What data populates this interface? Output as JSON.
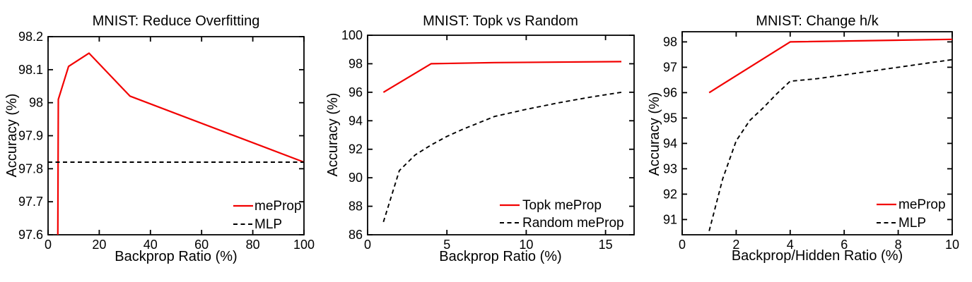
{
  "figure": {
    "background": "#ffffff",
    "axis_color": "#000000",
    "accent_red": "#f20000"
  },
  "chart_data": [
    {
      "type": "line",
      "title": "MNIST: Reduce Overfitting",
      "xlabel": "Backprop Ratio (%)",
      "ylabel": "Accuracy (%)",
      "xlim": [
        0,
        100
      ],
      "ylim": [
        97.6,
        98.2
      ],
      "xticks": [
        0,
        20,
        40,
        60,
        80,
        100
      ],
      "xtick_labels": [
        "0",
        "20",
        "40",
        "60",
        "80",
        "100"
      ],
      "yticks": [
        97.6,
        97.7,
        97.8,
        97.9,
        98,
        98.1,
        98.2
      ],
      "ytick_labels": [
        "97.6",
        "97.7",
        "97.8",
        "97.9",
        "98",
        "98.1",
        "98.2"
      ],
      "grid": false,
      "legend_position": "bottom-right",
      "series": [
        {
          "name": "meProp",
          "color": "#f20000",
          "style": "solid",
          "points": [
            [
              3.8,
              97.6
            ],
            [
              4,
              98.01
            ],
            [
              8,
              98.11
            ],
            [
              16,
              98.15
            ],
            [
              32,
              98.02
            ],
            [
              100,
              97.82
            ]
          ]
        },
        {
          "name": "MLP",
          "color": "#000000",
          "style": "dashed",
          "points": [
            [
              0,
              97.82
            ],
            [
              100,
              97.82
            ]
          ]
        }
      ]
    },
    {
      "type": "line",
      "title": "MNIST: Topk vs Random",
      "xlabel": "Backprop Ratio (%)",
      "ylabel": "Accuracy (%)",
      "xlim": [
        0,
        16.8
      ],
      "ylim": [
        86,
        100
      ],
      "xticks": [
        0,
        5,
        10,
        15
      ],
      "xtick_labels": [
        "0",
        "5",
        "10",
        "15"
      ],
      "yticks": [
        86,
        88,
        90,
        92,
        94,
        96,
        98,
        100
      ],
      "ytick_labels": [
        "86",
        "88",
        "90",
        "92",
        "94",
        "96",
        "98",
        "100"
      ],
      "grid": false,
      "legend_position": "bottom-right",
      "series": [
        {
          "name": "Topk meProp",
          "color": "#f20000",
          "style": "solid",
          "points": [
            [
              1,
              96
            ],
            [
              4,
              98
            ],
            [
              8,
              98.08
            ],
            [
              16,
              98.15
            ]
          ]
        },
        {
          "name": "Random meProp",
          "color": "#000000",
          "style": "dashed",
          "points": [
            [
              1,
              86.9
            ],
            [
              2,
              90.5
            ],
            [
              3,
              91.6
            ],
            [
              4,
              92.3
            ],
            [
              5,
              92.9
            ],
            [
              6,
              93.4
            ],
            [
              8,
              94.3
            ],
            [
              10,
              94.8
            ],
            [
              12,
              95.25
            ],
            [
              14,
              95.65
            ],
            [
              16,
              96
            ]
          ]
        }
      ]
    },
    {
      "type": "line",
      "title": "MNIST: Change h/k",
      "xlabel": "Backprop/Hidden Ratio (%)",
      "ylabel": "Accuracy (%)",
      "xlim": [
        0,
        10
      ],
      "ylim": [
        90.4,
        98.4
      ],
      "xticks": [
        0,
        2,
        4,
        6,
        8,
        10
      ],
      "xtick_labels": [
        "0",
        "2",
        "4",
        "6",
        "8",
        "10"
      ],
      "yticks": [
        91,
        92,
        93,
        94,
        95,
        96,
        97,
        98
      ],
      "ytick_labels": [
        "91",
        "92",
        "93",
        "94",
        "95",
        "96",
        "97",
        "98"
      ],
      "grid": false,
      "legend_position": "bottom-right",
      "series": [
        {
          "name": "meProp",
          "color": "#f20000",
          "style": "solid",
          "points": [
            [
              1,
              96
            ],
            [
              4,
              98
            ],
            [
              10,
              98.1
            ]
          ]
        },
        {
          "name": "MLP",
          "color": "#000000",
          "style": "dashed",
          "points": [
            [
              1,
              90.55
            ],
            [
              1.5,
              92.6
            ],
            [
              2,
              94.1
            ],
            [
              2.5,
              94.9
            ],
            [
              3,
              95.4
            ],
            [
              3.5,
              95.95
            ],
            [
              4,
              96.45
            ],
            [
              5,
              96.55
            ],
            [
              6,
              96.7
            ],
            [
              7,
              96.85
            ],
            [
              8,
              97.0
            ],
            [
              9,
              97.15
            ],
            [
              10,
              97.3
            ]
          ]
        }
      ]
    }
  ]
}
